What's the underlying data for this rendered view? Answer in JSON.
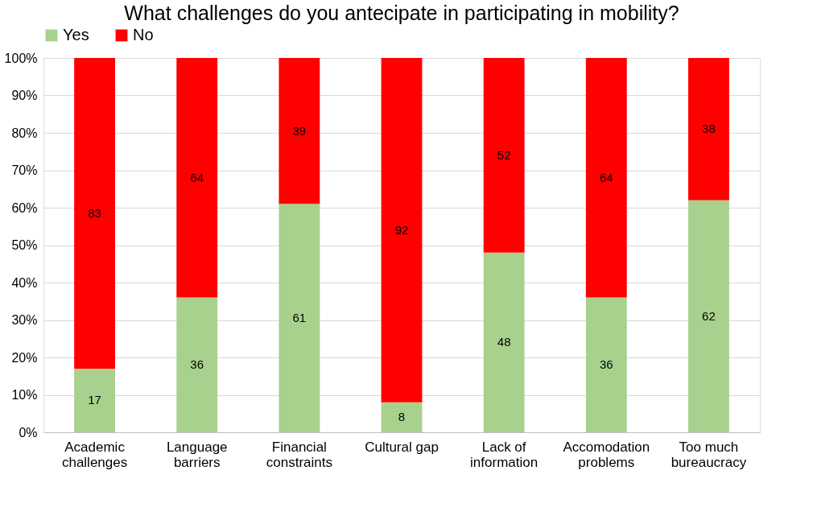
{
  "chart_data": {
    "type": "bar",
    "title": "What challenges do you antecipate in participating in mobility?",
    "categories": [
      "Academic challenges",
      "Language barriers",
      "Financial constraints",
      "Cultural gap",
      "Lack of information",
      "Accomodation problems",
      "Too much bureaucracy"
    ],
    "series": [
      {
        "name": "Yes",
        "color": "#a9d18e",
        "values": [
          17,
          36,
          61,
          8,
          48,
          36,
          62
        ]
      },
      {
        "name": "No",
        "color": "#ff0000",
        "values": [
          83,
          64,
          39,
          92,
          52,
          64,
          38
        ]
      }
    ],
    "stacked": true,
    "data_labels": true,
    "legend": "top",
    "grid": "y",
    "ylim": [
      0,
      100
    ],
    "yticks": [
      {
        "value": 0,
        "label": "0%"
      },
      {
        "value": 10,
        "label": "10%"
      },
      {
        "value": 20,
        "label": "20%"
      },
      {
        "value": 30,
        "label": "30%"
      },
      {
        "value": 40,
        "label": "40%"
      },
      {
        "value": 50,
        "label": "50%"
      },
      {
        "value": 60,
        "label": "60%"
      },
      {
        "value": 70,
        "label": "70%"
      },
      {
        "value": 80,
        "label": "80%"
      },
      {
        "value": 90,
        "label": "90%"
      },
      {
        "value": 100,
        "label": "100%"
      }
    ]
  }
}
